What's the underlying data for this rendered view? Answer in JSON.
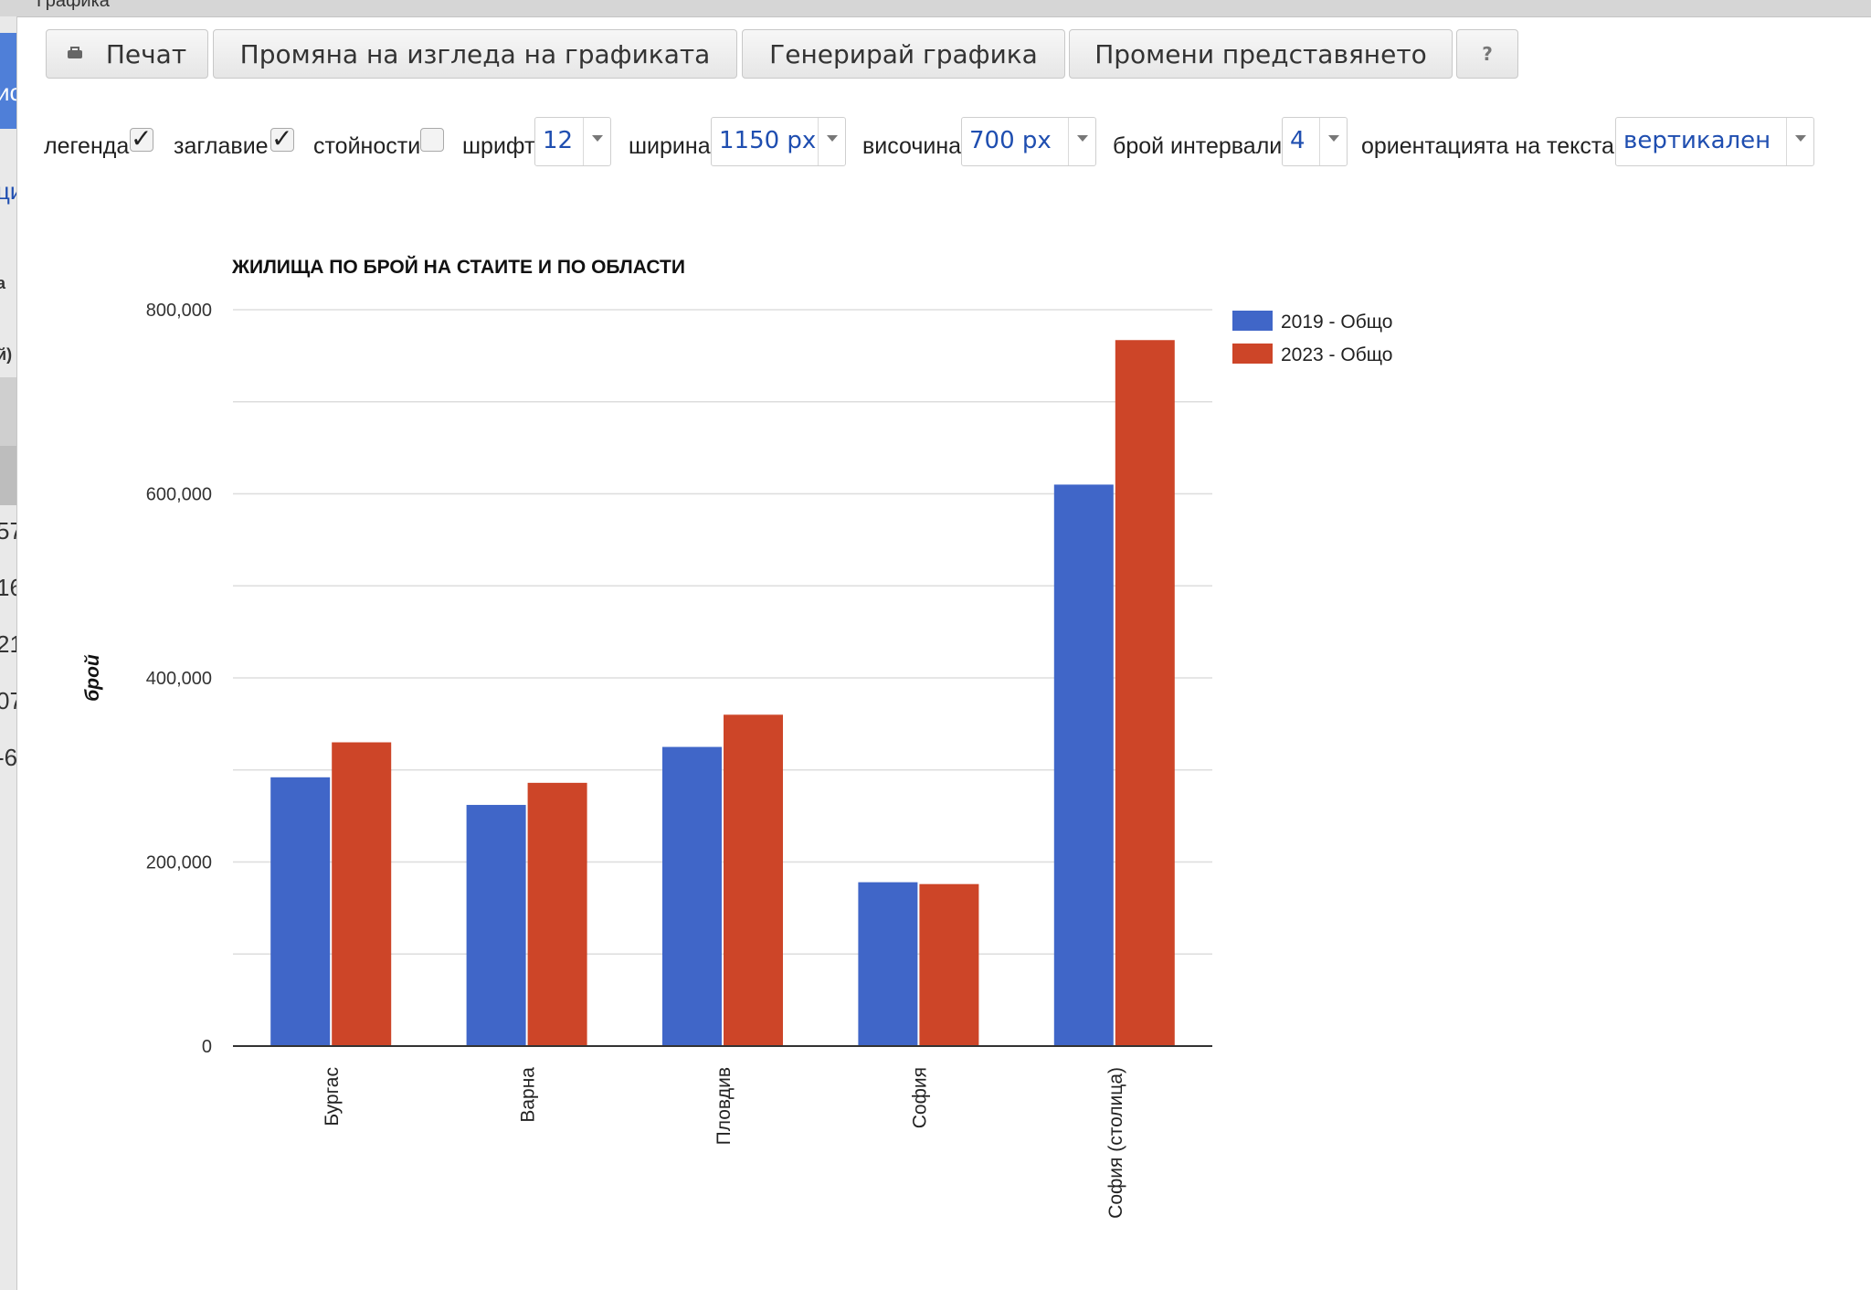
{
  "window": {
    "title": "Графика"
  },
  "left_strip": {
    "fragments": [
      "ис",
      "ци",
      "а",
      "й)",
      "57",
      "16",
      "21",
      "07",
      "-6"
    ]
  },
  "toolbar": {
    "print_label": "Печат",
    "appearance_label": "Промяна на изгледа на графиката",
    "generate_label": "Генерирай графика",
    "representation_label": "Промени представянето",
    "help_label": "?"
  },
  "controls": {
    "legend_label": "легенда",
    "legend_checked": true,
    "title_label": "заглавие",
    "title_checked": true,
    "values_label": "стойности",
    "values_checked": false,
    "font_label": "шрифт",
    "font_value": "12",
    "width_label": "ширина",
    "width_value": "1150 px",
    "height_label": "височина",
    "height_value": "700 px",
    "intervals_label": "брой интервали",
    "intervals_value": "4",
    "orientation_label": "ориентацията на текста",
    "orientation_value": "вертикален"
  },
  "chart_data": {
    "type": "bar",
    "title": "ЖИЛИЩА ПО БРОЙ НА СТАИТЕ И ПО ОБЛАСТИ",
    "xlabel": "",
    "ylabel": "брой",
    "categories": [
      "Бургас",
      "Варна",
      "Пловдив",
      "София",
      "София (столица)"
    ],
    "series": [
      {
        "name": "2019 - Общо",
        "color": "#4066c8",
        "values": [
          292000,
          262000,
          325000,
          178000,
          610000
        ]
      },
      {
        "name": "2023 - Общо",
        "color": "#cd4528",
        "values": [
          330000,
          286000,
          360000,
          176000,
          767000
        ]
      }
    ],
    "ylim": [
      0,
      800000
    ],
    "yticks": [
      "0",
      "200,000",
      "400,000",
      "600,000",
      "800,000"
    ],
    "grid": true,
    "legend_position": "right",
    "tick_label_orientation": "vertical"
  }
}
